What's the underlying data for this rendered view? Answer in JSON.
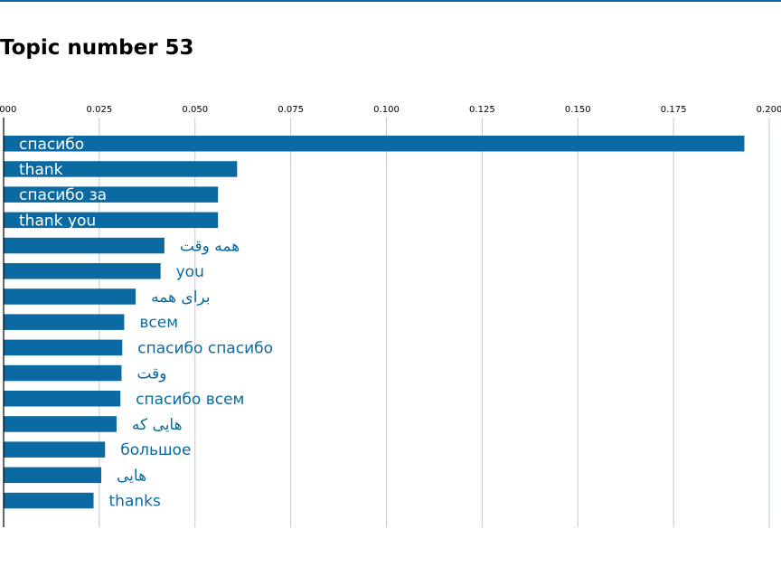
{
  "chart_data": {
    "type": "bar",
    "orientation": "horizontal",
    "title": "Topic number 53",
    "xlabel": "",
    "ylabel": "",
    "xlim": [
      0,
      0.2
    ],
    "xticks": [
      "0.000",
      "0.025",
      "0.050",
      "0.075",
      "0.100",
      "0.125",
      "0.150",
      "0.175",
      "0.200"
    ],
    "x_axis_position": "top",
    "grid": "vertical",
    "bar_color": "#0a6aa1",
    "label_color_inside": "#ffffff",
    "label_color_outside": "#0a6aa1",
    "categories": [
      "спасибо",
      "thank",
      "спасибо за",
      "thank you",
      "همه وقت",
      "you",
      "برای همه",
      "всем",
      "спасибо спасибо",
      "وقت",
      "спасибо всем",
      "هایی که",
      "большое",
      "هایی",
      "thanks"
    ],
    "values": [
      0.1935,
      0.061,
      0.056,
      0.056,
      0.042,
      0.041,
      0.0345,
      0.0315,
      0.031,
      0.0308,
      0.0305,
      0.0295,
      0.0265,
      0.0255,
      0.0235
    ]
  }
}
